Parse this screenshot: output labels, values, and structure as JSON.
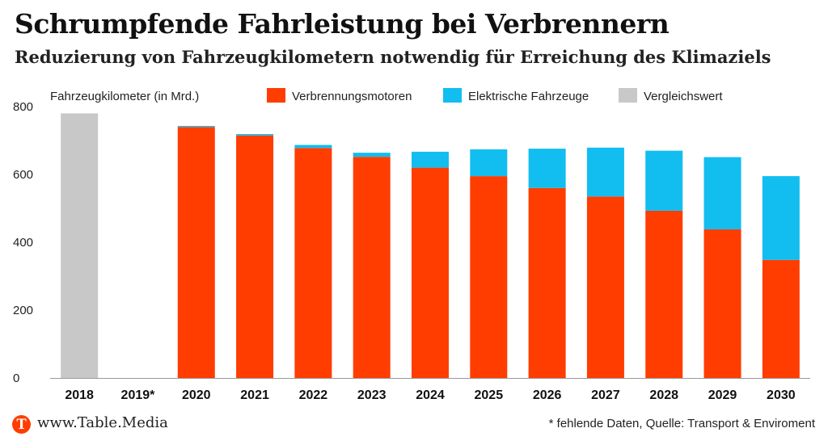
{
  "header": {
    "title": "Schrumpfende Fahrleistung bei Verbrennern",
    "subtitle": "Reduzierung von Fahrzeugkilometern notwendig für Erreichung des Klimaziels"
  },
  "chart_data": {
    "type": "bar",
    "stacked": true,
    "ylabel": "Fahrzeugkilometer (in Mrd.)",
    "ylim": [
      0,
      800
    ],
    "yticks": [
      0,
      200,
      400,
      600,
      800
    ],
    "grid": false,
    "legend_position": "top",
    "categories": [
      "2018",
      "2019*",
      "2020",
      "2021",
      "2022",
      "2023",
      "2024",
      "2025",
      "2026",
      "2027",
      "2028",
      "2029",
      "2030"
    ],
    "series": [
      {
        "name": "Verbrennungsmotoren",
        "color": "#ff3d00",
        "values": [
          null,
          null,
          740,
          715,
          678,
          652,
          620,
          595,
          560,
          535,
          493,
          438,
          348
        ]
      },
      {
        "name": "Elektrische Fahrzeuge",
        "color": "#12bdf0",
        "values": [
          null,
          null,
          3,
          4,
          9,
          12,
          47,
          79,
          116,
          144,
          177,
          213,
          247
        ]
      },
      {
        "name": "Vergleichswert",
        "color": "#c8c8c8",
        "values": [
          780,
          null,
          null,
          null,
          null,
          null,
          null,
          null,
          null,
          null,
          null,
          null,
          null
        ]
      }
    ]
  },
  "footer": {
    "logo_icon": "table-media-logo-icon",
    "logo_letter": "T",
    "logo_color": "#ff3d00",
    "site": "www.Table.Media",
    "source": "* fehlende Daten, Quelle: Transport & Enviroment"
  }
}
